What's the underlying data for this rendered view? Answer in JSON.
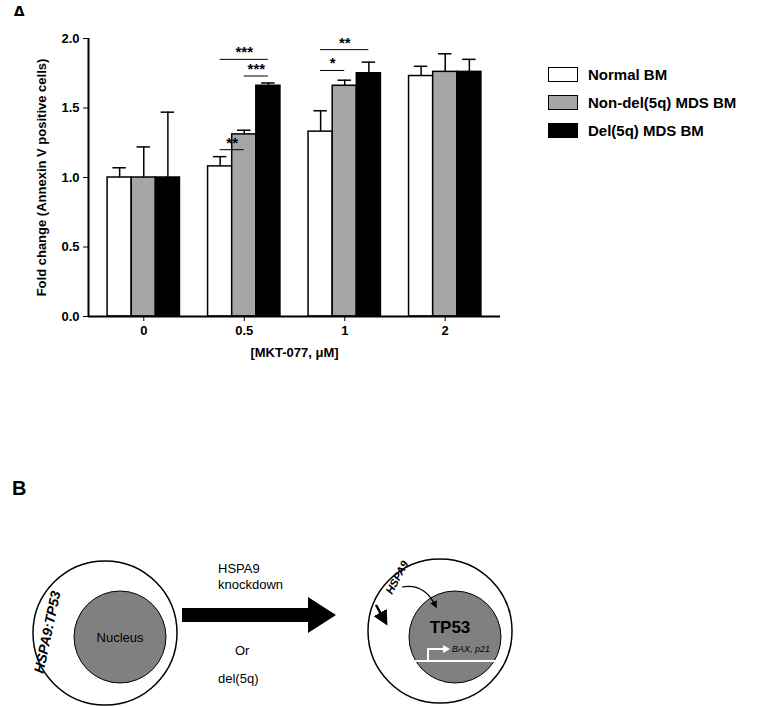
{
  "chart_data": {
    "type": "bar",
    "panel_label": "A",
    "x_label": "[MKT-077, μM]",
    "y_label": "Fold change (Annexin V positive cells)",
    "categories": [
      "0",
      "0.5",
      "1",
      "2"
    ],
    "series": [
      {
        "name": "Normal BM",
        "color": "#ffffff",
        "values": [
          1.0,
          1.08,
          1.33,
          1.73
        ],
        "errors": [
          0.07,
          0.07,
          0.15,
          0.07
        ]
      },
      {
        "name": "Non-del(5q) MDS BM",
        "color": "#a6a6a6",
        "values": [
          1.0,
          1.31,
          1.66,
          1.76
        ],
        "errors": [
          0.22,
          0.03,
          0.04,
          0.13
        ]
      },
      {
        "name": "Del(5q) MDS BM",
        "color": "#000000",
        "values": [
          1.0,
          1.66,
          1.75,
          1.76
        ],
        "errors": [
          0.47,
          0.02,
          0.08,
          0.09
        ]
      }
    ],
    "ylim": [
      0,
      2
    ],
    "yticks": [
      {
        "value": 0,
        "label": "0.0"
      },
      {
        "value": 0.5,
        "label": "0.5"
      },
      {
        "value": 1,
        "label": "1.0"
      },
      {
        "value": 1.5,
        "label": "1.5"
      },
      {
        "value": 2,
        "label": "2.0"
      }
    ],
    "grid": false,
    "legend": "right",
    "annotations": [
      {
        "category": "0.5",
        "from": "Normal BM",
        "to": "Non-del(5q) MDS BM",
        "y": 1.2,
        "text": "**"
      },
      {
        "category": "0.5",
        "from": "Normal BM",
        "to": "Del(5q) MDS BM",
        "y": 1.85,
        "text": "***"
      },
      {
        "category": "0.5",
        "from": "Non-del(5q) MDS BM",
        "to": "Del(5q) MDS BM",
        "y": 1.73,
        "text": "***"
      },
      {
        "category": "1",
        "from": "Normal BM",
        "to": "Del(5q) MDS BM",
        "y": 1.92,
        "text": "**"
      },
      {
        "category": "1",
        "from": "Normal BM",
        "to": "Non-del(5q) MDS BM",
        "y": 1.77,
        "text": "*"
      }
    ]
  },
  "diagram": {
    "panel_label": "B",
    "left_cell": {
      "complex": "HSPA9:TP53",
      "nucleus": "Nucleus"
    },
    "arrow": {
      "above": [
        "HSPA9",
        "knockdown"
      ],
      "below": [
        "Or",
        "del(5q)"
      ]
    },
    "right_cell": {
      "cytoplasm": "HSPA9",
      "nucleus": "TP53",
      "genes": "BAX, p21"
    }
  }
}
